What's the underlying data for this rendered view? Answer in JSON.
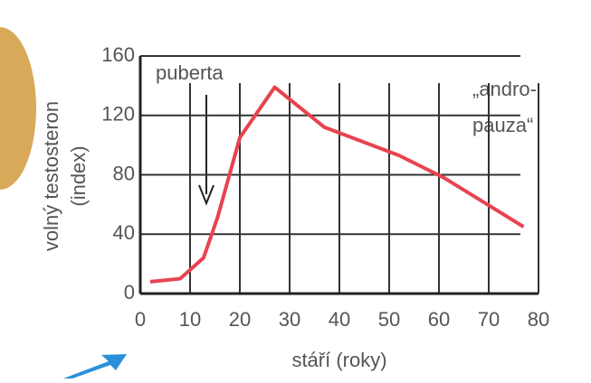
{
  "chart_data": {
    "type": "line",
    "x": [
      2,
      8,
      12.7,
      15.5,
      20,
      27,
      37,
      52,
      61,
      77
    ],
    "series": [
      {
        "name": "volný testosteron",
        "color": "#e8434f",
        "values": [
          8,
          10,
          24,
          51,
          105,
          139,
          112,
          93,
          78,
          45
        ]
      }
    ],
    "xlim": [
      0,
      80
    ],
    "xticks": [
      0,
      10,
      20,
      30,
      40,
      50,
      60,
      70,
      80
    ],
    "ylim": [
      0,
      160
    ],
    "yticks": [
      0,
      40,
      80,
      120,
      160
    ],
    "grid": true,
    "xlabel": "stáří (roky)",
    "ylabel": [
      "volný testosteron",
      "(index)"
    ],
    "annotations": {
      "puberty": "puberta",
      "andropause": [
        "„andro-",
        "pauza“"
      ]
    }
  }
}
